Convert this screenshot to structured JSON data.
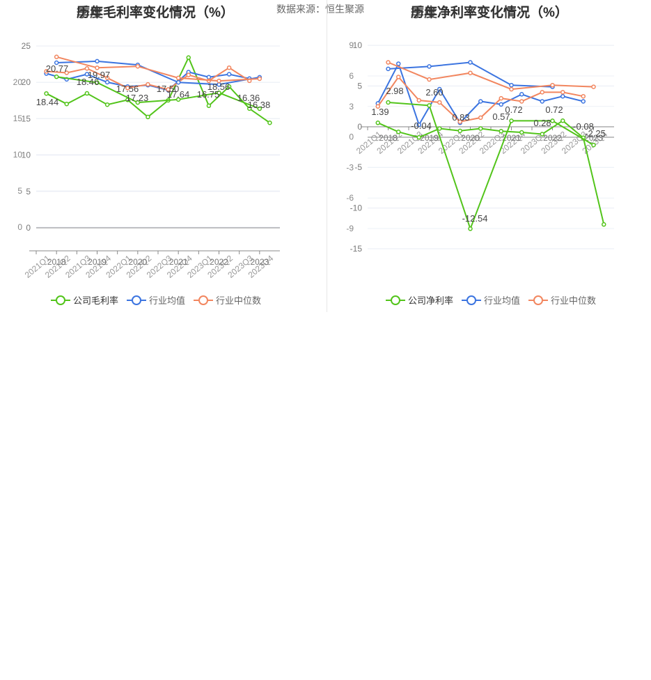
{
  "source": "数据来源：恒生聚源",
  "colors": {
    "company": "#52c41a",
    "industry_avg": "#3b74e0",
    "industry_median": "#f2865f"
  },
  "chart_data": [
    {
      "type": "line",
      "title": "历年毛利率变化情况（%）",
      "title_overlay": "季度毛利率变化情况（%）",
      "y_ticks": [
        "0",
        "5",
        "10",
        "15",
        "20",
        "25"
      ],
      "y_ticks_overlay": [
        "0",
        "5",
        "10",
        "15",
        "20"
      ],
      "x_categories": [
        "2021Q1",
        "2021Q2",
        "2021Q3",
        "2021Q4",
        "2022Q1",
        "2022Q2",
        "2022Q3",
        "2022Q4",
        "2023Q1",
        "2023Q2",
        "2023Q3",
        "2023Q4"
      ],
      "x_years": [
        "2018",
        "2019",
        "2020",
        "2021",
        "2022",
        "2023"
      ],
      "annual_series": [
        {
          "name": "公司毛利率",
          "values": [
            20.77,
            19.97,
            17.23,
            17.64,
            18.56,
            16.38
          ]
        },
        {
          "name": "行业均值",
          "values": [
            22.7,
            22.9,
            22.4,
            20.0,
            19.7,
            20.7
          ]
        },
        {
          "name": "行业中位数",
          "values": [
            23.5,
            22.0,
            22.2,
            20.6,
            20.2,
            20.5
          ]
        }
      ],
      "quarterly_series": [
        {
          "name": "公司毛利率",
          "values": [
            18.44,
            17.0,
            18.46,
            16.9,
            17.56,
            15.2,
            17.5,
            23.4,
            16.75,
            19.4,
            16.36,
            14.4
          ]
        },
        {
          "name": "行业均值",
          "values": [
            21.2,
            20.4,
            21.1,
            20.0,
            19.4,
            19.6,
            18.9,
            21.4,
            20.7,
            21.1,
            20.5,
            null
          ]
        },
        {
          "name": "行业中位数",
          "values": [
            21.5,
            21.3,
            21.9,
            20.6,
            19.2,
            19.7,
            19.0,
            21.0,
            20.2,
            22.0,
            20.2,
            null
          ]
        }
      ],
      "data_labels": [
        "18.44",
        "20.77",
        "18.46",
        "19.97",
        "17.56",
        "17.23",
        "17.50",
        "17.64",
        "16.75",
        "18.56",
        "16.36",
        "16.38"
      ],
      "legend": [
        "公司毛利率",
        "行业均值",
        "行业中位数"
      ]
    },
    {
      "type": "line",
      "title": "历年净利率变化情况（%）",
      "title_overlay": "季度净利率变化情况（%）",
      "y_ticks": [
        "-15",
        "-10",
        "-5",
        "0",
        "5",
        "10"
      ],
      "y_ticks_overlay": [
        "-9",
        "-6",
        "-3",
        "0",
        "3",
        "6",
        "9"
      ],
      "x_categories": [
        "2021Q1",
        "2021Q2",
        "2021Q3",
        "2021Q4",
        "2022Q1",
        "2022Q2",
        "2022Q3",
        "2022Q4",
        "2023Q1",
        "2023Q2",
        "2023Q3",
        "2023Q4"
      ],
      "x_years": [
        "2018",
        "2019",
        "2020",
        "2021",
        "2022",
        "2023"
      ],
      "annual_series": [
        {
          "name": "公司净利率",
          "values": [
            2.98,
            2.6,
            -12.54,
            0.72,
            0.72,
            -2.25
          ]
        },
        {
          "name": "行业均值",
          "values": [
            7.1,
            7.4,
            7.9,
            5.1,
            4.9,
            null
          ]
        },
        {
          "name": "行业中位数",
          "values": [
            7.9,
            5.8,
            6.6,
            4.6,
            5.1,
            4.9
          ]
        }
      ],
      "quarterly_series": [
        {
          "name": "公司净利率",
          "values": [
            1.39,
            0.5,
            -0.04,
            0.83,
            0.6,
            0.83,
            0.57,
            0.45,
            0.28,
            1.6,
            -0.08,
            -8.6
          ]
        },
        {
          "name": "行业均值",
          "values": [
            3.3,
            7.2,
            1.2,
            4.7,
            1.4,
            3.5,
            3.2,
            4.2,
            3.5,
            4.0,
            3.5,
            null
          ]
        },
        {
          "name": "行业中位数",
          "values": [
            3.0,
            5.9,
            3.6,
            3.4,
            1.5,
            1.9,
            3.8,
            3.5,
            4.4,
            4.4,
            4.0,
            null
          ]
        }
      ],
      "data_labels": [
        "1.39",
        "2.98",
        "-0.04",
        "2.60",
        "0.83",
        "-12.54",
        "0.57",
        "0.72",
        "0.28",
        "0.72",
        "-0.08",
        "-2.25"
      ],
      "legend": [
        "公司净利率",
        "行业均值",
        "行业中位数"
      ]
    }
  ]
}
